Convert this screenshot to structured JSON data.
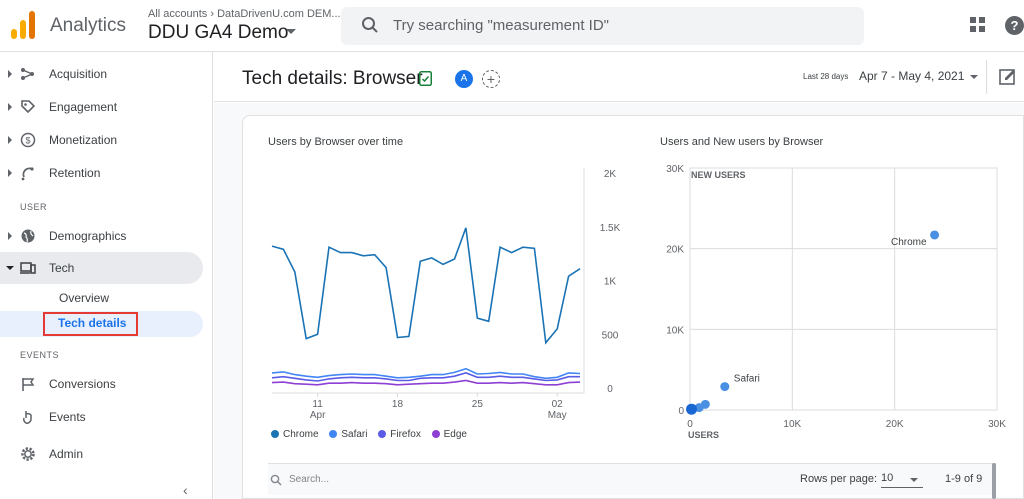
{
  "app": {
    "name": "Analytics",
    "account_crumb": "All accounts › DataDrivenU.com DEM...",
    "property": "DDU GA4 Demo"
  },
  "search": {
    "placeholder": "Try searching \"measurement ID\""
  },
  "sidebar": {
    "items": [
      {
        "label": "Acquisition",
        "icon": "acquisition-icon"
      },
      {
        "label": "Engagement",
        "icon": "engagement-icon"
      },
      {
        "label": "Monetization",
        "icon": "monetization-icon"
      },
      {
        "label": "Retention",
        "icon": "retention-icon"
      }
    ],
    "user_section": "USER",
    "user_items": [
      {
        "label": "Demographics",
        "icon": "globe-icon"
      },
      {
        "label": "Tech",
        "icon": "devices-icon"
      }
    ],
    "tech_sub": {
      "overview": "Overview",
      "tech_details": "Tech details"
    },
    "events_section": "EVENTS",
    "event_items": [
      {
        "label": "Conversions",
        "icon": "flag-icon"
      },
      {
        "label": "Events",
        "icon": "events-icon"
      }
    ],
    "admin": {
      "label": "Admin",
      "icon": "gear-icon"
    },
    "collapse_glyph": "‹"
  },
  "header": {
    "title": "Tech details: Browser",
    "avatar": "A",
    "add": "+",
    "range_label": "Last 28 days",
    "range_value": "Apr 7 - May 4, 2021"
  },
  "line_chart": {
    "title": "Users by Browser over time",
    "legend": [
      {
        "name": "Chrome",
        "color": "#1a73b4"
      },
      {
        "name": "Safari",
        "color": "#4285f4"
      },
      {
        "name": "Firefox",
        "color": "#5a5ce6"
      },
      {
        "name": "Edge",
        "color": "#8e3fd4"
      }
    ]
  },
  "scatter_chart": {
    "title": "Users and New users by Browser"
  },
  "chart_data": [
    {
      "type": "line",
      "x_tick_labels": [
        {
          "day": "11",
          "month": "Apr"
        },
        {
          "day": "18",
          "month": ""
        },
        {
          "day": "25",
          "month": ""
        },
        {
          "day": "02",
          "month": "May"
        }
      ],
      "y_tick_labels": [
        "2K",
        "1.5K",
        "1K",
        "500",
        "0"
      ],
      "ylim": [
        0,
        2000
      ],
      "y_axis_position": "right",
      "x": [
        "Apr 7",
        "Apr 8",
        "Apr 9",
        "Apr 10",
        "Apr 11",
        "Apr 12",
        "Apr 13",
        "Apr 14",
        "Apr 15",
        "Apr 16",
        "Apr 17",
        "Apr 18",
        "Apr 19",
        "Apr 20",
        "Apr 21",
        "Apr 22",
        "Apr 23",
        "Apr 24",
        "Apr 25",
        "Apr 26",
        "Apr 27",
        "Apr 28",
        "Apr 29",
        "Apr 30",
        "May 1",
        "May 2",
        "May 3",
        "May 4"
      ],
      "series": [
        {
          "name": "Chrome",
          "values": [
            1320,
            1290,
            1080,
            460,
            500,
            1310,
            1260,
            1260,
            1230,
            1240,
            1120,
            470,
            480,
            1180,
            1210,
            1150,
            1200,
            1490,
            650,
            620,
            1310,
            1260,
            1310,
            1300,
            420,
            550,
            1040,
            1110
          ]
        },
        {
          "name": "Safari",
          "values": [
            140,
            150,
            125,
            110,
            100,
            115,
            125,
            130,
            125,
            125,
            110,
            95,
            100,
            110,
            125,
            125,
            145,
            180,
            130,
            135,
            145,
            130,
            130,
            105,
            90,
            100,
            140,
            135
          ]
        },
        {
          "name": "Firefox",
          "values": [
            95,
            105,
            90,
            75,
            65,
            85,
            95,
            100,
            95,
            95,
            85,
            70,
            70,
            90,
            95,
            95,
            110,
            140,
            100,
            100,
            110,
            100,
            100,
            85,
            70,
            75,
            105,
            105
          ]
        },
        {
          "name": "Edge",
          "values": [
            50,
            55,
            40,
            35,
            30,
            45,
            45,
            50,
            45,
            45,
            40,
            30,
            35,
            40,
            45,
            45,
            55,
            70,
            45,
            45,
            50,
            45,
            50,
            40,
            30,
            30,
            50,
            55
          ]
        }
      ]
    },
    {
      "type": "scatter",
      "x_label": "USERS",
      "y_label": "NEW USERS",
      "xlim": [
        0,
        30000
      ],
      "ylim": [
        0,
        30000
      ],
      "x_tick_labels": [
        "0",
        "10K",
        "20K",
        "30K"
      ],
      "y_tick_labels": [
        "0",
        "10K",
        "20K",
        "30K"
      ],
      "points": [
        {
          "label": "Chrome",
          "x": 23900,
          "y": 21700,
          "show_label": true
        },
        {
          "label": "Safari",
          "x": 3400,
          "y": 2900,
          "show_label": true
        },
        {
          "label": "",
          "x": 1500,
          "y": 700,
          "show_label": false
        },
        {
          "label": "",
          "x": 900,
          "y": 300,
          "show_label": false
        },
        {
          "label": "",
          "x": 150,
          "y": 100,
          "show_label": false
        }
      ],
      "point_color": "#4a90e2"
    }
  ],
  "table": {
    "search_placeholder": "Search...",
    "rows_per_page_label": "Rows per page:",
    "rows_per_page_value": "10",
    "page_info": "1-9 of 9"
  }
}
